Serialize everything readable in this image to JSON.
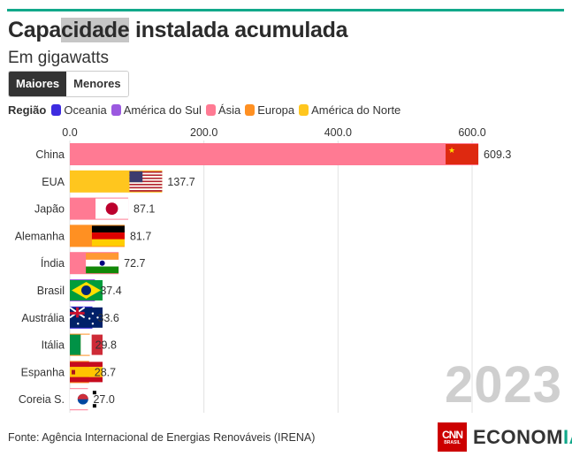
{
  "header": {
    "title_before": "Capa",
    "title_highlight": "cidade",
    "title_after": " instalada acumulada",
    "subtitle": "Em gigawatts",
    "accent_color": "#12a88a"
  },
  "toggle": {
    "options": [
      {
        "label": "Maiores",
        "active": true
      },
      {
        "label": "Menores",
        "active": false
      }
    ]
  },
  "legend": {
    "label": "Região",
    "items": [
      {
        "label": "Oceania",
        "color": "#3d2be0"
      },
      {
        "label": "América do Sul",
        "color": "#9b59e0"
      },
      {
        "label": "Ásia",
        "color": "#ff7a93"
      },
      {
        "label": "Europa",
        "color": "#ff9022"
      },
      {
        "label": "América do Norte",
        "color": "#ffc61e"
      }
    ]
  },
  "year": "2023",
  "source": "Fonte: Agência Internacional de Energias Renováveis (IRENA)",
  "logo": {
    "cnn": "CNN",
    "cnn_sub": "BRASIL",
    "economia_a": "ECONOM",
    "economia_b": "IA"
  },
  "chart_data": {
    "type": "bar",
    "orientation": "horizontal",
    "title": "Capacidade instalada acumulada",
    "subtitle": "Em gigawatts",
    "xlim": [
      0,
      640
    ],
    "xticks": [
      0,
      200,
      400,
      600
    ],
    "xtick_labels": [
      "0.0",
      "200.0",
      "400.0",
      "600.0"
    ],
    "grid": true,
    "categories": [
      "China",
      "EUA",
      "Japão",
      "Alemanha",
      "Índia",
      "Brasil",
      "Austrália",
      "Itália",
      "Espanha",
      "Coreia S."
    ],
    "values": [
      609.3,
      137.7,
      87.1,
      81.7,
      72.7,
      37.4,
      33.6,
      29.8,
      28.7,
      27.0
    ],
    "value_labels": [
      "609.3",
      "137.7",
      "87.1",
      "81.7",
      "72.7",
      "37.4",
      "33.6",
      "29.8",
      "28.7",
      "27.0"
    ],
    "regions": [
      "Ásia",
      "América do Norte",
      "Ásia",
      "Europa",
      "Ásia",
      "América do Sul",
      "Oceania",
      "Europa",
      "Europa",
      "Ásia"
    ],
    "flags": [
      "china-flag",
      "usa-flag",
      "japan-flag",
      "germany-flag",
      "india-flag",
      "brazil-flag",
      "australia-flag",
      "italy-flag",
      "spain-flag",
      "south-korea-flag"
    ]
  }
}
